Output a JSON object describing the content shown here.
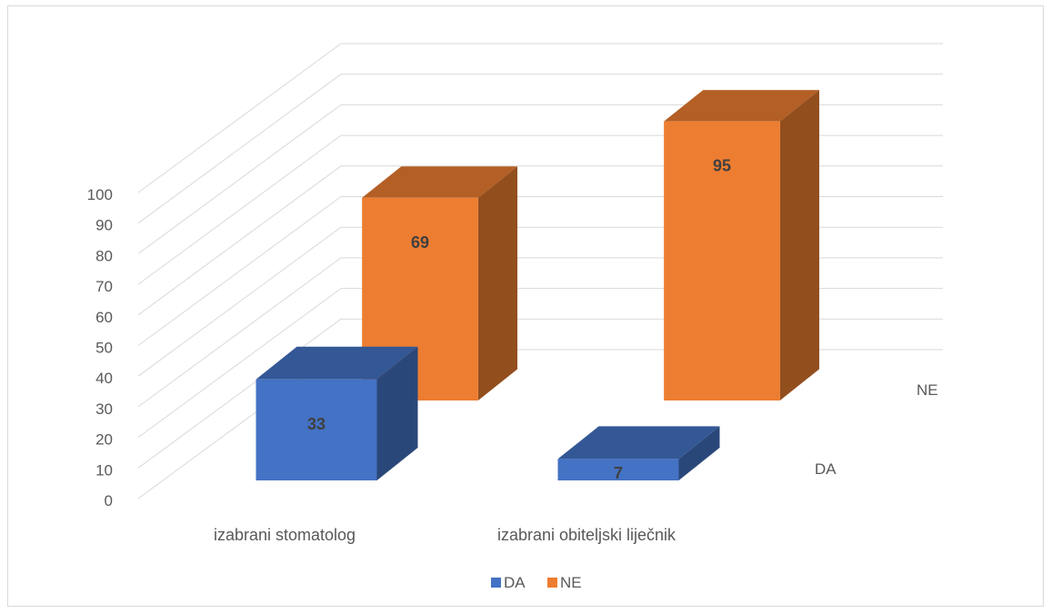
{
  "chart_data": {
    "type": "bar",
    "style": "3d-column",
    "categories": [
      "izabrani stomatolog",
      "izabrani obiteljski liječnik"
    ],
    "series": [
      {
        "name": "DA",
        "values": [
          33,
          7
        ],
        "color": "#4472c4"
      },
      {
        "name": "NE",
        "values": [
          69,
          95
        ],
        "color": "#ed7d31"
      }
    ],
    "ylim": [
      0,
      100
    ],
    "yticks": [
      0,
      10,
      20,
      30,
      40,
      50,
      60,
      70,
      80,
      90,
      100
    ],
    "grid": true,
    "legend": {
      "position": "bottom",
      "entries": [
        "DA",
        "NE"
      ]
    },
    "depth_labels": [
      "DA",
      "NE"
    ],
    "data_labels": true
  }
}
